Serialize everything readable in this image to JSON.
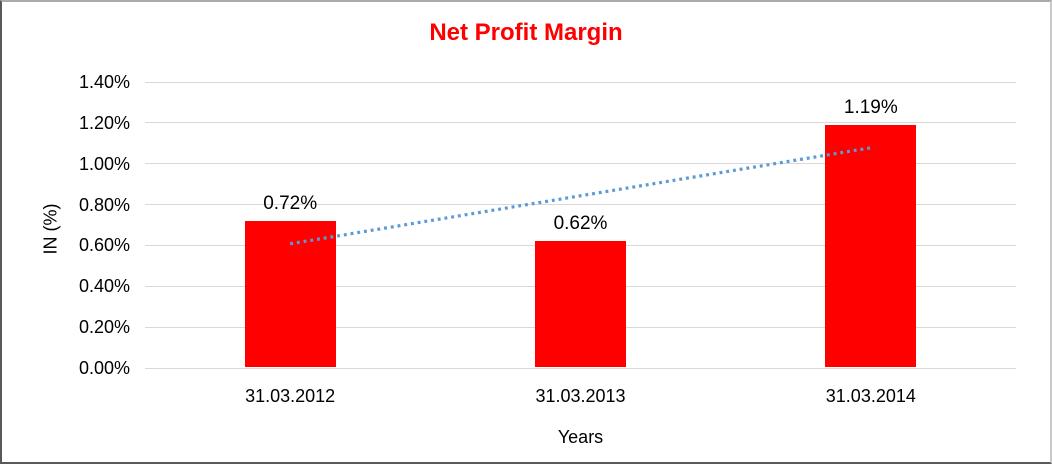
{
  "chart_data": {
    "type": "bar",
    "title": "Net Profit Margin",
    "xlabel": "Years",
    "ylabel": "IN (%)",
    "categories": [
      "31.03.2012",
      "31.03.2013",
      "31.03.2014"
    ],
    "values": [
      0.72,
      0.62,
      1.19
    ],
    "data_labels": [
      "0.72%",
      "0.62%",
      "1.19%"
    ],
    "y_tick_labels": [
      "1.40%",
      "1.20%",
      "1.00%",
      "0.80%",
      "0.60%",
      "0.40%",
      "0.20%",
      "0.00%"
    ],
    "ylim": [
      0,
      1.4
    ],
    "y_step": 0.2,
    "grid": true,
    "legend": "none",
    "colors": {
      "bar": "#ff0000",
      "title": "#ff0000",
      "gridline": "#d9d9d9",
      "text": "#000000",
      "trendline": "#5b9bd5"
    },
    "trendline": {
      "type": "linear",
      "style": "dotted",
      "start_value": 0.608,
      "end_value": 1.078
    }
  }
}
